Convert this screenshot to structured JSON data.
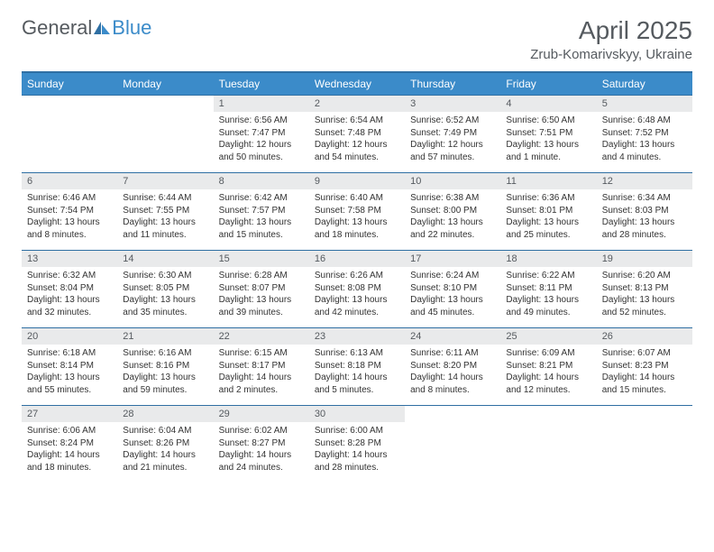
{
  "logo": {
    "text1": "General",
    "text2": "Blue"
  },
  "title": "April 2025",
  "location": "Zrub-Komarivskyy, Ukraine",
  "colors": {
    "header_bg": "#3b8bc9",
    "header_text": "#ffffff",
    "rule": "#2f6fa3",
    "daynum_bg": "#e9eaeb",
    "body_text": "#333333",
    "title_text": "#555a5f"
  },
  "fonts": {
    "title_size": 28,
    "location_size": 15,
    "dayhead_size": 12,
    "daynum_size": 11,
    "body_size": 10
  },
  "days_of_week": [
    "Sunday",
    "Monday",
    "Tuesday",
    "Wednesday",
    "Thursday",
    "Friday",
    "Saturday"
  ],
  "weeks": [
    [
      null,
      null,
      {
        "n": "1",
        "sr": "6:56 AM",
        "ss": "7:47 PM",
        "dl": "12 hours and 50 minutes."
      },
      {
        "n": "2",
        "sr": "6:54 AM",
        "ss": "7:48 PM",
        "dl": "12 hours and 54 minutes."
      },
      {
        "n": "3",
        "sr": "6:52 AM",
        "ss": "7:49 PM",
        "dl": "12 hours and 57 minutes."
      },
      {
        "n": "4",
        "sr": "6:50 AM",
        "ss": "7:51 PM",
        "dl": "13 hours and 1 minute."
      },
      {
        "n": "5",
        "sr": "6:48 AM",
        "ss": "7:52 PM",
        "dl": "13 hours and 4 minutes."
      }
    ],
    [
      {
        "n": "6",
        "sr": "6:46 AM",
        "ss": "7:54 PM",
        "dl": "13 hours and 8 minutes."
      },
      {
        "n": "7",
        "sr": "6:44 AM",
        "ss": "7:55 PM",
        "dl": "13 hours and 11 minutes."
      },
      {
        "n": "8",
        "sr": "6:42 AM",
        "ss": "7:57 PM",
        "dl": "13 hours and 15 minutes."
      },
      {
        "n": "9",
        "sr": "6:40 AM",
        "ss": "7:58 PM",
        "dl": "13 hours and 18 minutes."
      },
      {
        "n": "10",
        "sr": "6:38 AM",
        "ss": "8:00 PM",
        "dl": "13 hours and 22 minutes."
      },
      {
        "n": "11",
        "sr": "6:36 AM",
        "ss": "8:01 PM",
        "dl": "13 hours and 25 minutes."
      },
      {
        "n": "12",
        "sr": "6:34 AM",
        "ss": "8:03 PM",
        "dl": "13 hours and 28 minutes."
      }
    ],
    [
      {
        "n": "13",
        "sr": "6:32 AM",
        "ss": "8:04 PM",
        "dl": "13 hours and 32 minutes."
      },
      {
        "n": "14",
        "sr": "6:30 AM",
        "ss": "8:05 PM",
        "dl": "13 hours and 35 minutes."
      },
      {
        "n": "15",
        "sr": "6:28 AM",
        "ss": "8:07 PM",
        "dl": "13 hours and 39 minutes."
      },
      {
        "n": "16",
        "sr": "6:26 AM",
        "ss": "8:08 PM",
        "dl": "13 hours and 42 minutes."
      },
      {
        "n": "17",
        "sr": "6:24 AM",
        "ss": "8:10 PM",
        "dl": "13 hours and 45 minutes."
      },
      {
        "n": "18",
        "sr": "6:22 AM",
        "ss": "8:11 PM",
        "dl": "13 hours and 49 minutes."
      },
      {
        "n": "19",
        "sr": "6:20 AM",
        "ss": "8:13 PM",
        "dl": "13 hours and 52 minutes."
      }
    ],
    [
      {
        "n": "20",
        "sr": "6:18 AM",
        "ss": "8:14 PM",
        "dl": "13 hours and 55 minutes."
      },
      {
        "n": "21",
        "sr": "6:16 AM",
        "ss": "8:16 PM",
        "dl": "13 hours and 59 minutes."
      },
      {
        "n": "22",
        "sr": "6:15 AM",
        "ss": "8:17 PM",
        "dl": "14 hours and 2 minutes."
      },
      {
        "n": "23",
        "sr": "6:13 AM",
        "ss": "8:18 PM",
        "dl": "14 hours and 5 minutes."
      },
      {
        "n": "24",
        "sr": "6:11 AM",
        "ss": "8:20 PM",
        "dl": "14 hours and 8 minutes."
      },
      {
        "n": "25",
        "sr": "6:09 AM",
        "ss": "8:21 PM",
        "dl": "14 hours and 12 minutes."
      },
      {
        "n": "26",
        "sr": "6:07 AM",
        "ss": "8:23 PM",
        "dl": "14 hours and 15 minutes."
      }
    ],
    [
      {
        "n": "27",
        "sr": "6:06 AM",
        "ss": "8:24 PM",
        "dl": "14 hours and 18 minutes."
      },
      {
        "n": "28",
        "sr": "6:04 AM",
        "ss": "8:26 PM",
        "dl": "14 hours and 21 minutes."
      },
      {
        "n": "29",
        "sr": "6:02 AM",
        "ss": "8:27 PM",
        "dl": "14 hours and 24 minutes."
      },
      {
        "n": "30",
        "sr": "6:00 AM",
        "ss": "8:28 PM",
        "dl": "14 hours and 28 minutes."
      },
      null,
      null,
      null
    ]
  ],
  "labels": {
    "sunrise": "Sunrise:",
    "sunset": "Sunset:",
    "daylight": "Daylight:"
  }
}
